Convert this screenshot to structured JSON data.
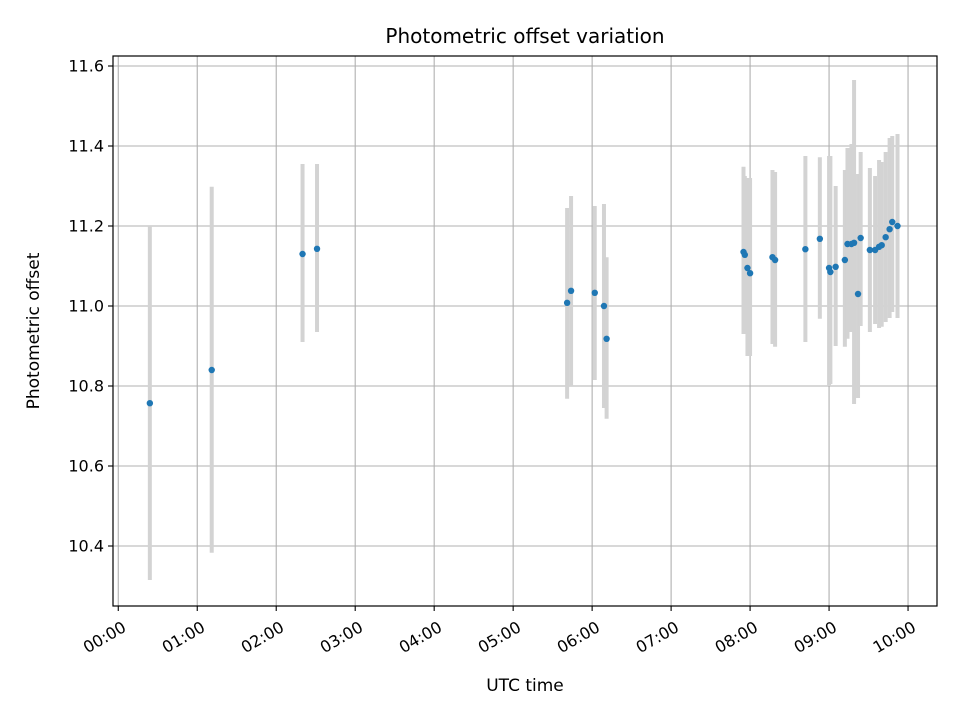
{
  "chart_data": {
    "type": "scatter",
    "title": "Photometric offset variation",
    "xlabel": "UTC time",
    "ylabel": "Photometric offset",
    "x_axis_kind": "time",
    "xlim": [
      "-0:04",
      "10:22"
    ],
    "ylim": [
      10.25,
      11.625
    ],
    "grid": true,
    "x_ticks": [
      "00:00",
      "01:00",
      "02:00",
      "03:00",
      "04:00",
      "05:00",
      "06:00",
      "07:00",
      "08:00",
      "09:00",
      "10:00"
    ],
    "y_ticks": [
      "10.4",
      "10.6",
      "10.8",
      "11.0",
      "11.2",
      "11.4",
      "11.6"
    ],
    "colors": {
      "points": "#1f77b4",
      "errorbars": "#d3d3d3",
      "grid": "#b0b0b0"
    },
    "series": [
      {
        "points": [
          {
            "x": "00:24",
            "y": 10.757,
            "lo": 10.315,
            "hi": 11.2
          },
          {
            "x": "01:11",
            "y": 10.84,
            "lo": 10.383,
            "hi": 11.298
          },
          {
            "x": "02:20",
            "y": 11.13,
            "lo": 10.91,
            "hi": 11.355
          },
          {
            "x": "02:31",
            "y": 11.143,
            "lo": 10.935,
            "hi": 11.355
          },
          {
            "x": "05:41",
            "y": 11.008,
            "lo": 10.768,
            "hi": 11.245
          },
          {
            "x": "05:44",
            "y": 11.038,
            "lo": 10.8,
            "hi": 11.275
          },
          {
            "x": "06:02",
            "y": 11.033,
            "lo": 10.815,
            "hi": 11.25
          },
          {
            "x": "06:09",
            "y": 11.0,
            "lo": 10.745,
            "hi": 11.255
          },
          {
            "x": "06:11",
            "y": 10.918,
            "lo": 10.718,
            "hi": 11.122
          },
          {
            "x": "07:55",
            "y": 11.135,
            "lo": 10.93,
            "hi": 11.348
          },
          {
            "x": "07:56",
            "y": 11.128,
            "lo": 10.93,
            "hi": 11.325
          },
          {
            "x": "07:58",
            "y": 11.095,
            "lo": 10.875,
            "hi": 11.32
          },
          {
            "x": "08:00",
            "y": 11.082,
            "lo": 10.875,
            "hi": 11.32
          },
          {
            "x": "08:17",
            "y": 11.122,
            "lo": 10.905,
            "hi": 11.34
          },
          {
            "x": "08:19",
            "y": 11.115,
            "lo": 10.898,
            "hi": 11.335
          },
          {
            "x": "08:42",
            "y": 11.142,
            "lo": 10.91,
            "hi": 11.375
          },
          {
            "x": "08:53",
            "y": 11.168,
            "lo": 10.968,
            "hi": 11.372
          },
          {
            "x": "09:00",
            "y": 11.095,
            "lo": 10.8,
            "hi": 11.375
          },
          {
            "x": "09:01",
            "y": 11.085,
            "lo": 10.805,
            "hi": 11.375
          },
          {
            "x": "09:05",
            "y": 11.098,
            "lo": 10.9,
            "hi": 11.3
          },
          {
            "x": "09:12",
            "y": 11.115,
            "lo": 10.898,
            "hi": 11.34
          },
          {
            "x": "09:14",
            "y": 11.155,
            "lo": 10.918,
            "hi": 11.395
          },
          {
            "x": "09:17",
            "y": 11.155,
            "lo": 10.935,
            "hi": 11.405
          },
          {
            "x": "09:19",
            "y": 11.158,
            "lo": 10.755,
            "hi": 11.565
          },
          {
            "x": "09:22",
            "y": 11.03,
            "lo": 10.77,
            "hi": 11.33
          },
          {
            "x": "09:24",
            "y": 11.17,
            "lo": 10.95,
            "hi": 11.385
          },
          {
            "x": "09:31",
            "y": 11.14,
            "lo": 10.935,
            "hi": 11.345
          },
          {
            "x": "09:35",
            "y": 11.14,
            "lo": 10.955,
            "hi": 11.325
          },
          {
            "x": "09:38",
            "y": 11.148,
            "lo": 10.945,
            "hi": 11.365
          },
          {
            "x": "09:40",
            "y": 11.152,
            "lo": 10.948,
            "hi": 11.36
          },
          {
            "x": "09:43",
            "y": 11.172,
            "lo": 10.96,
            "hi": 11.385
          },
          {
            "x": "09:46",
            "y": 11.192,
            "lo": 10.97,
            "hi": 11.42
          },
          {
            "x": "09:48",
            "y": 11.21,
            "lo": 10.985,
            "hi": 11.425
          },
          {
            "x": "09:52",
            "y": 11.2,
            "lo": 10.97,
            "hi": 11.43
          }
        ]
      }
    ]
  }
}
